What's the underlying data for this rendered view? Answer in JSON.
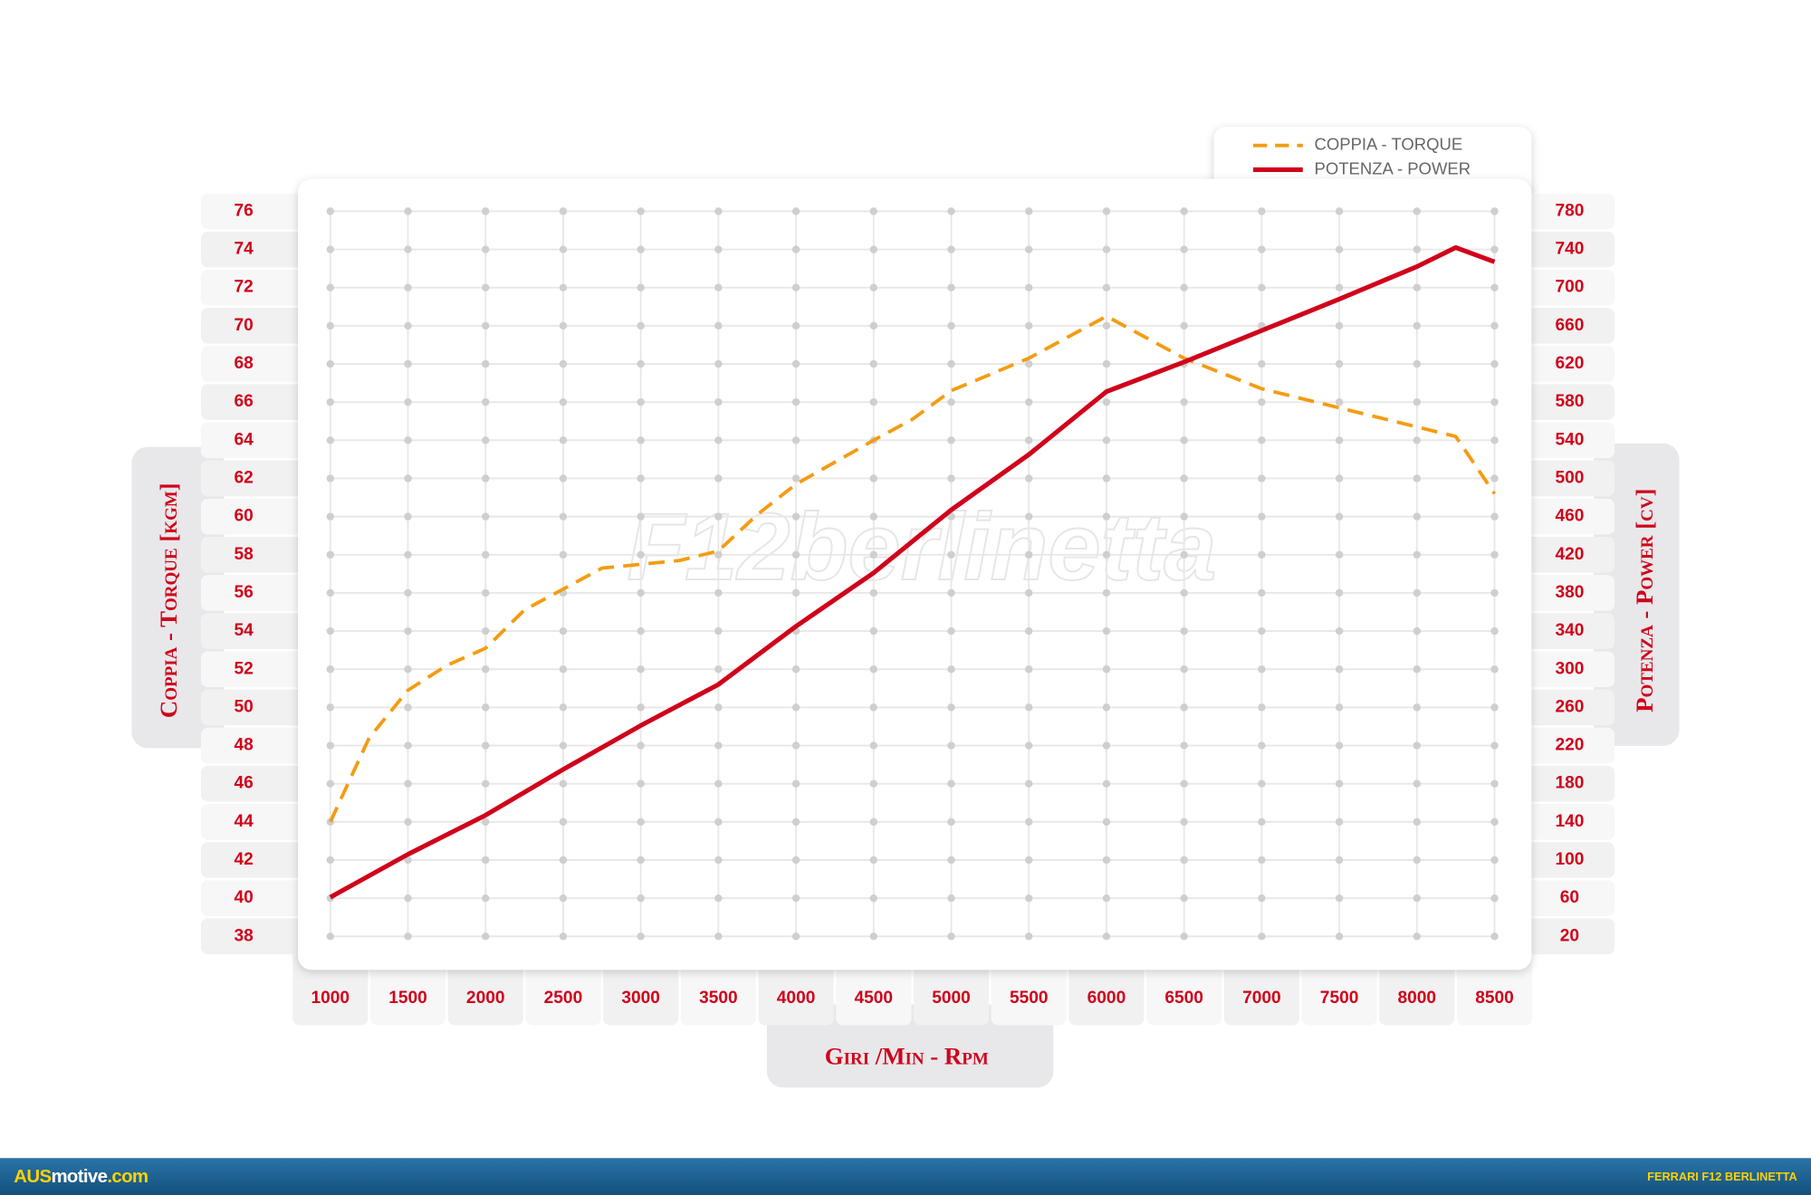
{
  "chart_data": {
    "type": "line",
    "watermark": "F12berlinetta",
    "xlabel": "Giri /Min - Rpm",
    "ylabel": "Coppia - Torque [kgm]",
    "y2label": "Potenza - Power [cv]",
    "xlim": [
      1000,
      8500
    ],
    "xticks": [
      1000,
      1500,
      2000,
      2500,
      3000,
      3500,
      4000,
      4500,
      5000,
      5500,
      6000,
      6500,
      7000,
      7500,
      8000,
      8500
    ],
    "ylim": [
      38,
      76
    ],
    "yticks": [
      38,
      40,
      42,
      44,
      46,
      48,
      50,
      52,
      54,
      56,
      58,
      60,
      62,
      64,
      66,
      68,
      70,
      72,
      74,
      76
    ],
    "y2lim": [
      20,
      780
    ],
    "y2ticks": [
      20,
      60,
      100,
      140,
      180,
      220,
      260,
      300,
      340,
      380,
      420,
      460,
      500,
      540,
      580,
      620,
      660,
      700,
      740,
      780
    ],
    "grid": true,
    "legend": "top-right",
    "series": [
      {
        "name": "COPPIA - TORQUE",
        "color": "#f39c12",
        "dashed": true,
        "x": [
          1000,
          1250,
          1500,
          1750,
          2000,
          2250,
          2500,
          2750,
          3000,
          3250,
          3500,
          3750,
          4000,
          4500,
          4750,
          5000,
          5500,
          6000,
          6500,
          7000,
          7500,
          8000,
          8250,
          8500
        ],
        "values": [
          44.0,
          48.4,
          50.9,
          52.2,
          53.1,
          55.1,
          56.2,
          57.3,
          57.5,
          57.7,
          58.2,
          60.1,
          61.7,
          64.0,
          65.1,
          66.6,
          68.3,
          70.5,
          68.3,
          66.7,
          65.7,
          64.7,
          64.2,
          61.2
        ]
      },
      {
        "name": "POTENZA - POWER",
        "color": "#d0021b",
        "dashed": false,
        "axis": "y2",
        "x": [
          1000,
          1500,
          2000,
          2500,
          3000,
          3500,
          4000,
          4500,
          5000,
          5500,
          6000,
          6500,
          7000,
          7500,
          8000,
          8250,
          8500
        ],
        "values": [
          61,
          106,
          147,
          195,
          241,
          284,
          345,
          401,
          467,
          525,
          591,
          622,
          655,
          688,
          722,
          742,
          727
        ]
      }
    ]
  },
  "footer": {
    "brand": [
      "AUS",
      "motive",
      ".com"
    ],
    "caption": "FERRARI F12 BERLINETTA"
  }
}
